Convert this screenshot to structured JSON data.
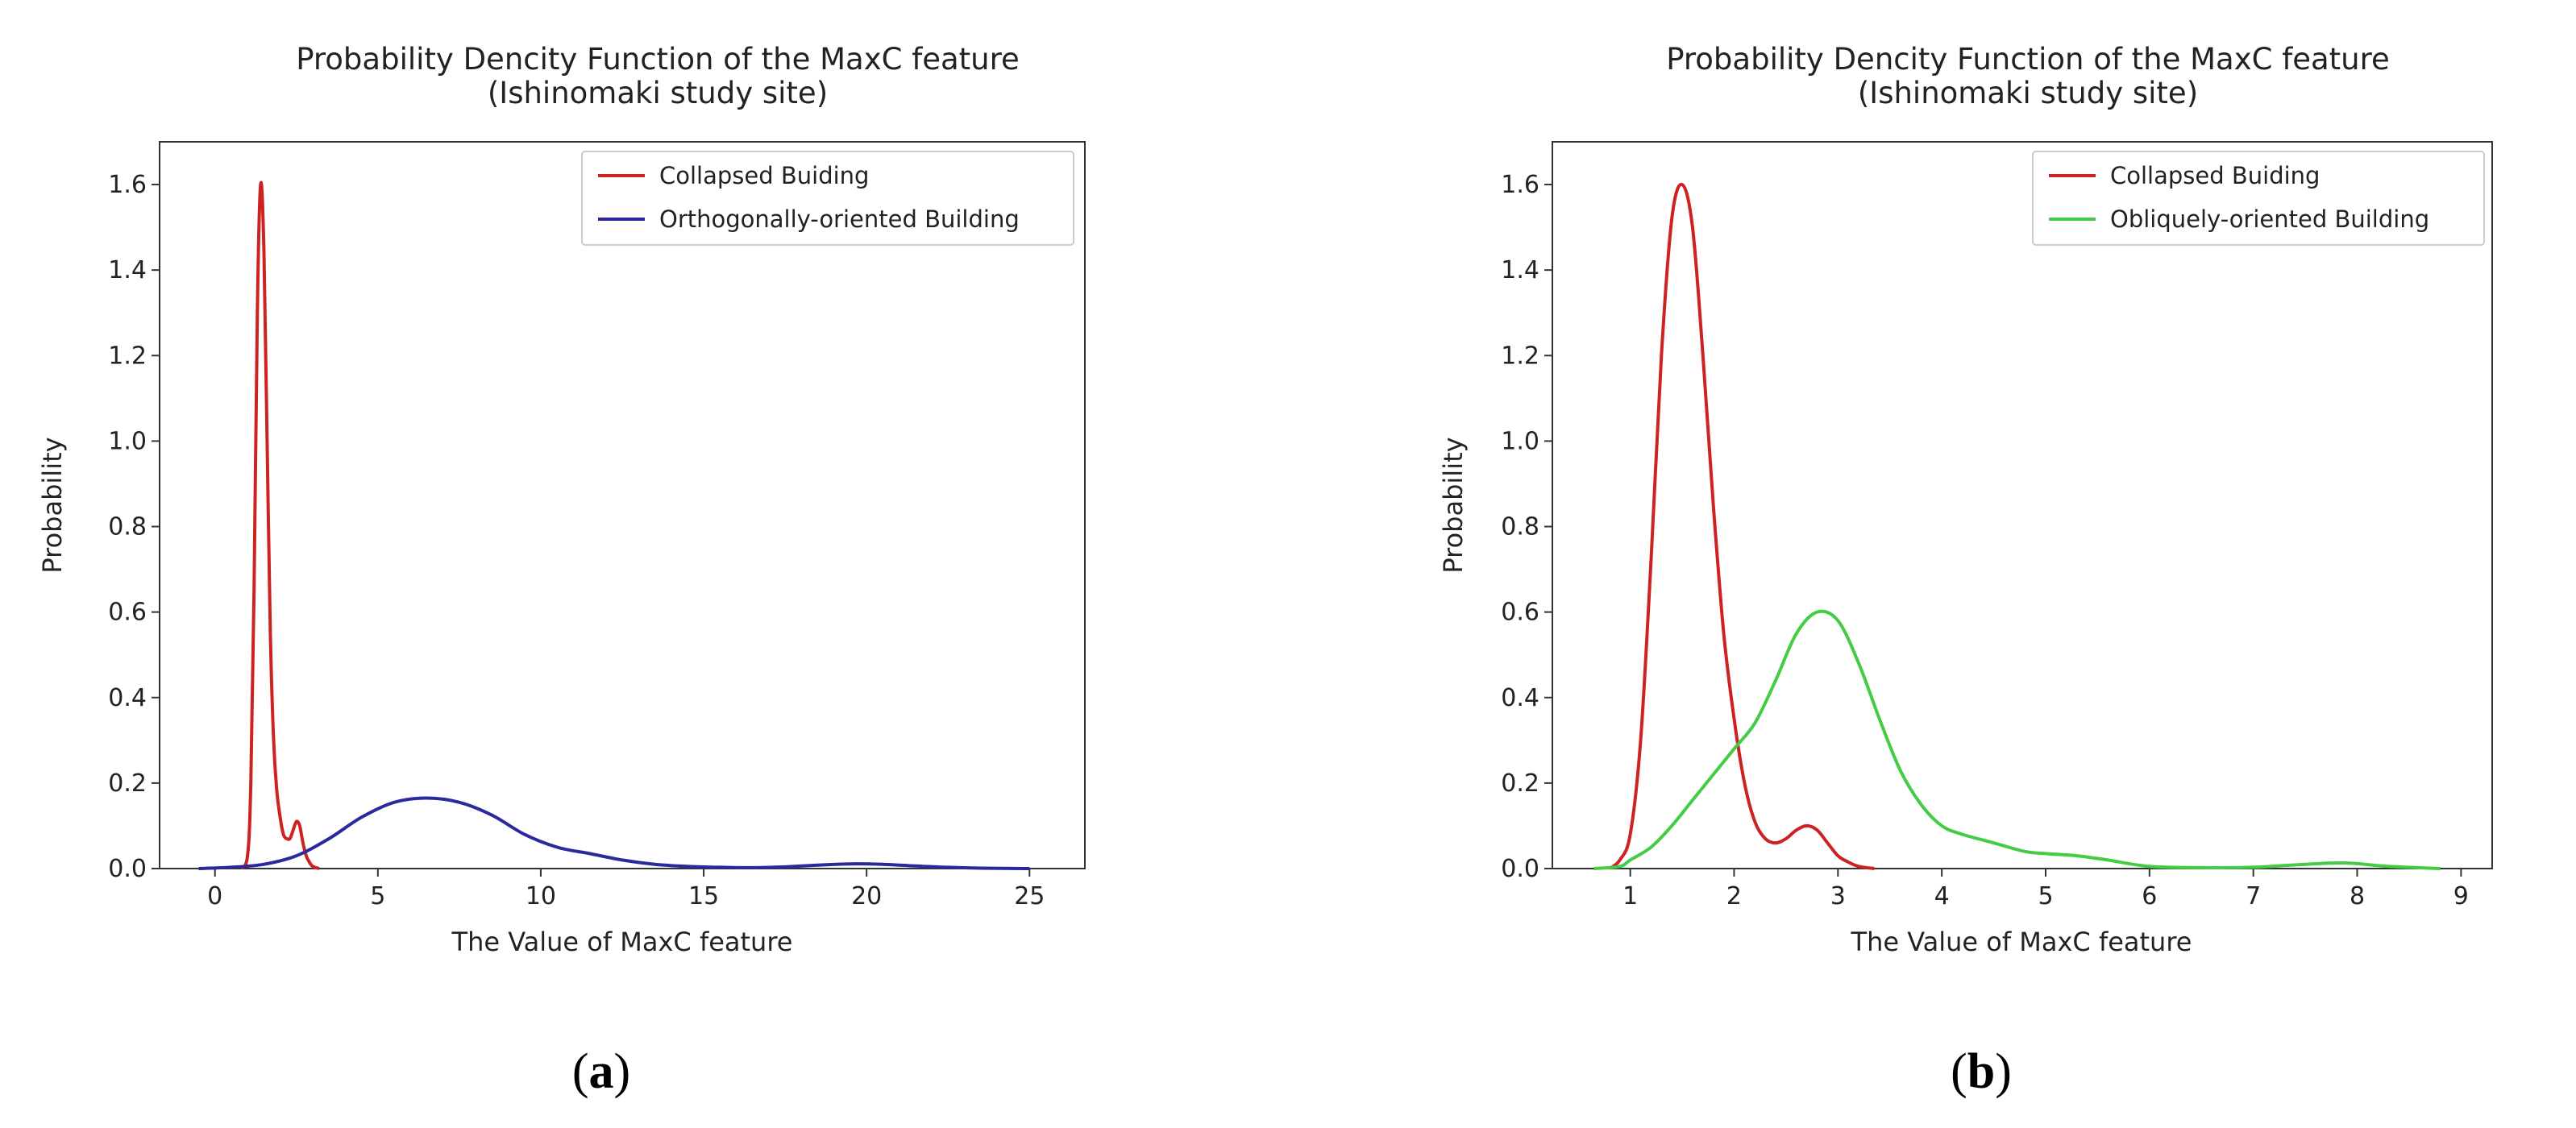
{
  "chart_data": [
    {
      "type": "line",
      "panel_label": "a",
      "title": "Probability Dencity Function of the MaxC feature",
      "subtitle": "(Ishinomaki study site)",
      "xlabel": "The Value of MaxC feature",
      "ylabel": "Probability",
      "xlim": [
        -1.7,
        26.7
      ],
      "ylim": [
        0,
        1.7
      ],
      "xticks": [
        0,
        5,
        10,
        15,
        20,
        25
      ],
      "yticks": [
        "0.0",
        "0.2",
        "0.4",
        "0.6",
        "0.8",
        "1.0",
        "1.2",
        "1.4",
        "1.6"
      ],
      "legend_position": "top-right",
      "grid": false,
      "series": [
        {
          "name": "Collapsed Buiding",
          "color": "#cc2222",
          "x": [
            0.8,
            1.0,
            1.1,
            1.2,
            1.3,
            1.4,
            1.5,
            1.6,
            1.7,
            1.8,
            1.9,
            2.0,
            2.1,
            2.2,
            2.3,
            2.4,
            2.5,
            2.6,
            2.7,
            2.8,
            2.9,
            3.0,
            3.2
          ],
          "y": [
            0.0,
            0.03,
            0.2,
            0.65,
            1.3,
            1.6,
            1.45,
            1.0,
            0.55,
            0.3,
            0.18,
            0.12,
            0.08,
            0.07,
            0.07,
            0.09,
            0.11,
            0.1,
            0.06,
            0.03,
            0.015,
            0.005,
            0.0
          ]
        },
        {
          "name": "Orthogonally-oriented Building",
          "color": "#2a2a9e",
          "x": [
            -0.5,
            0.5,
            1.5,
            2.5,
            3.5,
            4.5,
            5.5,
            6.5,
            7.5,
            8.5,
            9.5,
            10.5,
            11.5,
            12.5,
            13.5,
            14.5,
            15.5,
            16.5,
            17.5,
            18.5,
            19.5,
            20.5,
            21.5,
            22.5,
            23.5,
            25.0
          ],
          "y": [
            0.0,
            0.003,
            0.01,
            0.03,
            0.07,
            0.12,
            0.155,
            0.165,
            0.155,
            0.125,
            0.08,
            0.05,
            0.035,
            0.02,
            0.01,
            0.005,
            0.003,
            0.002,
            0.004,
            0.008,
            0.011,
            0.01,
            0.006,
            0.003,
            0.001,
            0.0
          ]
        }
      ]
    },
    {
      "type": "line",
      "panel_label": "b",
      "title": "Probability Dencity Function of the MaxC feature",
      "subtitle": "(Ishinomaki study site)",
      "xlabel": "The Value of MaxC feature",
      "ylabel": "Probability",
      "xlim": [
        0.25,
        9.3
      ],
      "ylim": [
        0,
        1.7
      ],
      "xticks": [
        1,
        2,
        3,
        4,
        5,
        6,
        7,
        8,
        9
      ],
      "yticks": [
        "0.0",
        "0.2",
        "0.4",
        "0.6",
        "0.8",
        "1.0",
        "1.2",
        "1.4",
        "1.6"
      ],
      "legend_position": "top-right",
      "grid": false,
      "series": [
        {
          "name": "Collapsed Buiding",
          "color": "#cc2222",
          "x": [
            0.8,
            0.9,
            1.0,
            1.1,
            1.2,
            1.3,
            1.4,
            1.5,
            1.6,
            1.7,
            1.8,
            1.9,
            2.0,
            2.1,
            2.2,
            2.3,
            2.4,
            2.5,
            2.6,
            2.7,
            2.8,
            2.9,
            3.0,
            3.1,
            3.2,
            3.35
          ],
          "y": [
            0.0,
            0.02,
            0.08,
            0.3,
            0.72,
            1.2,
            1.52,
            1.6,
            1.5,
            1.2,
            0.85,
            0.55,
            0.35,
            0.2,
            0.11,
            0.07,
            0.06,
            0.07,
            0.09,
            0.1,
            0.09,
            0.06,
            0.03,
            0.015,
            0.005,
            0.0
          ]
        },
        {
          "name": "Obliquely-oriented Building",
          "color": "#44cc44",
          "x": [
            0.65,
            0.9,
            1.0,
            1.2,
            1.4,
            1.6,
            1.8,
            2.0,
            2.2,
            2.4,
            2.6,
            2.8,
            3.0,
            3.2,
            3.4,
            3.6,
            3.8,
            4.0,
            4.2,
            4.5,
            4.8,
            5.0,
            5.3,
            5.6,
            6.0,
            6.5,
            7.0,
            7.5,
            7.9,
            8.3,
            8.8
          ],
          "y": [
            0.0,
            0.005,
            0.02,
            0.05,
            0.1,
            0.16,
            0.22,
            0.28,
            0.34,
            0.44,
            0.55,
            0.6,
            0.58,
            0.48,
            0.35,
            0.23,
            0.15,
            0.1,
            0.08,
            0.06,
            0.04,
            0.035,
            0.03,
            0.02,
            0.005,
            0.002,
            0.003,
            0.01,
            0.013,
            0.005,
            0.0
          ]
        }
      ]
    }
  ]
}
